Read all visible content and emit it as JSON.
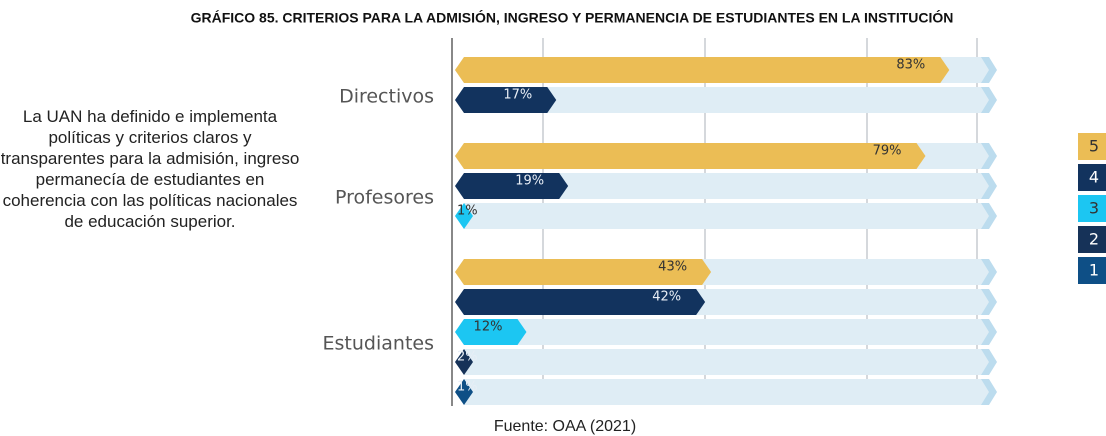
{
  "chart_data": {
    "type": "bar",
    "orientation": "horizontal",
    "title": "GRÁFICO 85. CRITERIOS PARA LA ADMISIÓN, INGRESO Y PERMANENCIA DE ESTUDIANTES EN LA INSTITUCIÓN",
    "annotation": "La UAN ha definido e implementa políticas y criterios claros y transparentes para la admisión, ingreso permanecía de estudiantes en coherencia con las políticas nacionales de educación superior.",
    "source": "Fuente: OAA (2021)",
    "categories": [
      "Directivos",
      "Profesores",
      "Estudiantes"
    ],
    "xlim": [
      0,
      90
    ],
    "series": [
      {
        "name": "5",
        "color": "#ebbd55",
        "values": [
          83,
          79,
          43
        ],
        "value_labels": [
          "83%",
          "79%",
          "43%"
        ]
      },
      {
        "name": "4",
        "color": "#12335e",
        "values": [
          17,
          19,
          42
        ],
        "value_labels": [
          "17%",
          "19%",
          "42%"
        ]
      },
      {
        "name": "3",
        "color": "#1cc6f2",
        "values": [
          null,
          1,
          12
        ],
        "value_labels": [
          null,
          "1%",
          "12%"
        ]
      },
      {
        "name": "2",
        "color": "#163258",
        "values": [
          null,
          null,
          2
        ],
        "value_labels": [
          null,
          null,
          "2%"
        ]
      },
      {
        "name": "1",
        "color": "#0e4f86",
        "values": [
          null,
          null,
          1
        ],
        "value_labels": [
          null,
          null,
          "1%"
        ]
      }
    ]
  }
}
